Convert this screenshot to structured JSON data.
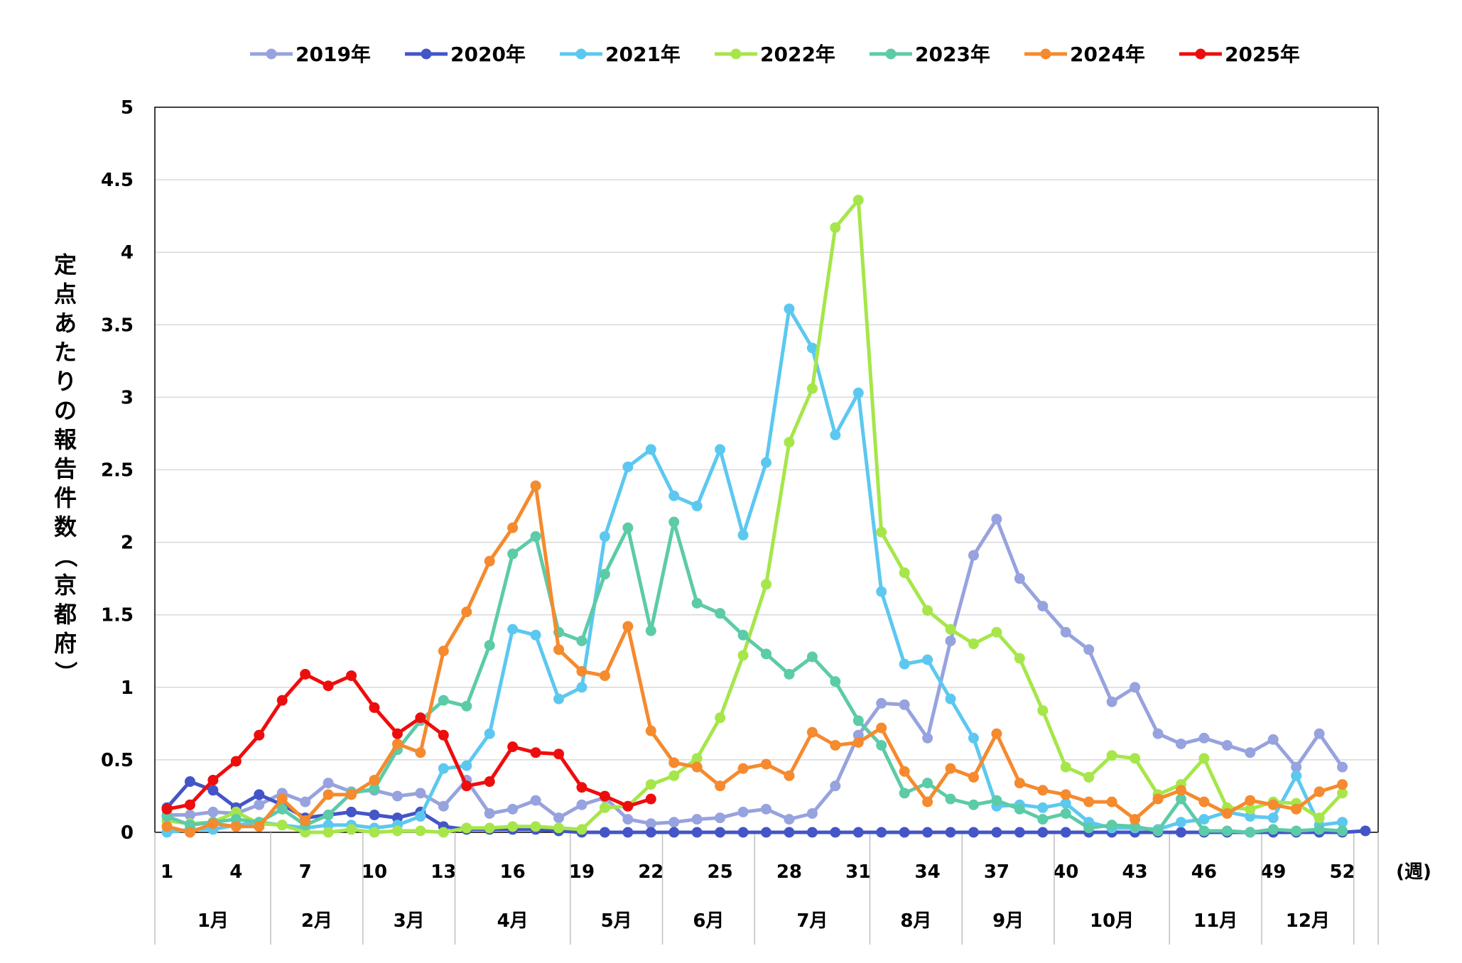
{
  "chart_data": {
    "type": "line",
    "title": "",
    "ylabel": "定点あたりの報告件数（京都府）",
    "xlabel": "(週)",
    "ylim": [
      0,
      5
    ],
    "yticks": [
      "0",
      "0.5",
      "1",
      "1.5",
      "2",
      "2.5",
      "3",
      "3.5",
      "4",
      "4.5",
      "5"
    ],
    "xlim": [
      1,
      53
    ],
    "xticks": [
      "1",
      "4",
      "7",
      "10",
      "13",
      "16",
      "19",
      "22",
      "25",
      "28",
      "31",
      "34",
      "37",
      "40",
      "43",
      "46",
      "49",
      "52"
    ],
    "months": [
      {
        "label": "1月",
        "start": 0.5,
        "end": 5.5
      },
      {
        "label": "2月",
        "start": 5.5,
        "end": 9.5
      },
      {
        "label": "3月",
        "start": 9.5,
        "end": 13.5
      },
      {
        "label": "4月",
        "start": 13.5,
        "end": 18.5
      },
      {
        "label": "5月",
        "start": 18.5,
        "end": 22.5
      },
      {
        "label": "6月",
        "start": 22.5,
        "end": 26.5
      },
      {
        "label": "7月",
        "start": 26.5,
        "end": 31.5
      },
      {
        "label": "8月",
        "start": 31.5,
        "end": 35.5
      },
      {
        "label": "9月",
        "start": 35.5,
        "end": 39.5
      },
      {
        "label": "10月",
        "start": 39.5,
        "end": 44.5
      },
      {
        "label": "11月",
        "start": 44.5,
        "end": 48.5
      },
      {
        "label": "12月",
        "start": 48.5,
        "end": 52.5
      }
    ],
    "grid": true,
    "legend_position": "top",
    "series": [
      {
        "name": "2019年",
        "color": "#97a3de",
        "start": 1,
        "values": [
          0.12,
          0.12,
          0.14,
          0.13,
          0.19,
          0.27,
          0.21,
          0.34,
          0.28,
          0.29,
          0.25,
          0.27,
          0.18,
          0.36,
          0.13,
          0.16,
          0.22,
          0.1,
          0.19,
          0.24,
          0.09,
          0.06,
          0.07,
          0.09,
          0.1,
          0.14,
          0.16,
          0.09,
          0.13,
          0.32,
          0.67,
          0.89,
          0.88,
          0.65,
          1.32,
          1.91,
          2.16,
          1.75,
          1.56,
          1.38,
          1.26,
          0.9,
          1.0,
          0.68,
          0.61,
          0.65,
          0.6,
          0.55,
          0.64,
          0.45,
          0.68,
          0.45
        ]
      },
      {
        "name": "2020年",
        "color": "#4355c7",
        "start": 1,
        "values": [
          0.17,
          0.35,
          0.29,
          0.17,
          0.26,
          0.19,
          0.1,
          0.12,
          0.14,
          0.12,
          0.1,
          0.14,
          0.04,
          0.02,
          0.02,
          0.02,
          0.02,
          0.01,
          0.0,
          0.0,
          0.0,
          0.0,
          0.0,
          0.0,
          0.0,
          0.0,
          0.0,
          0.0,
          0.0,
          0.0,
          0.0,
          0.0,
          0.0,
          0.0,
          0.0,
          0.0,
          0.0,
          0.0,
          0.0,
          0.0,
          0.0,
          0.0,
          0.0,
          0.0,
          0.0,
          0.0,
          0.0,
          0.0,
          0.0,
          0.0,
          0.0,
          0.0,
          0.01
        ]
      },
      {
        "name": "2021年",
        "color": "#5cc8f0",
        "start": 1,
        "values": [
          0.0,
          0.02,
          0.02,
          0.05,
          0.07,
          0.05,
          0.03,
          0.05,
          0.05,
          0.03,
          0.05,
          0.11,
          0.44,
          0.46,
          0.68,
          1.4,
          1.36,
          0.92,
          1.0,
          2.04,
          2.52,
          2.64,
          2.32,
          2.25,
          2.64,
          2.05,
          2.55,
          3.61,
          3.34,
          2.74,
          3.03,
          1.66,
          1.16,
          1.19,
          0.92,
          0.65,
          0.18,
          0.19,
          0.17,
          0.2,
          0.07,
          0.03,
          0.03,
          0.02,
          0.07,
          0.09,
          0.14,
          0.11,
          0.1,
          0.39,
          0.05,
          0.07
        ]
      },
      {
        "name": "2022年",
        "color": "#a6e64a",
        "start": 1,
        "values": [
          0.08,
          0.06,
          0.07,
          0.14,
          0.06,
          0.05,
          0.0,
          0.0,
          0.02,
          0.0,
          0.01,
          0.01,
          0.0,
          0.03,
          0.03,
          0.04,
          0.04,
          0.03,
          0.02,
          0.17,
          0.18,
          0.33,
          0.39,
          0.51,
          0.79,
          1.22,
          1.71,
          2.69,
          3.06,
          4.17,
          4.36,
          2.07,
          1.79,
          1.53,
          1.4,
          1.3,
          1.38,
          1.2,
          0.84,
          0.45,
          0.38,
          0.53,
          0.51,
          0.26,
          0.33,
          0.51,
          0.17,
          0.16,
          0.21,
          0.2,
          0.1,
          0.27
        ]
      },
      {
        "name": "2023年",
        "color": "#5ccba7",
        "start": 1,
        "values": [
          0.11,
          0.05,
          0.07,
          0.09,
          0.07,
          0.16,
          0.05,
          0.12,
          0.27,
          0.3,
          0.57,
          0.77,
          0.91,
          0.87,
          1.29,
          1.92,
          2.04,
          1.38,
          1.32,
          1.78,
          2.1,
          1.39,
          2.14,
          1.58,
          1.51,
          1.36,
          1.23,
          1.09,
          1.21,
          1.04,
          0.77,
          0.6,
          0.27,
          0.34,
          0.23,
          0.19,
          0.22,
          0.16,
          0.09,
          0.13,
          0.03,
          0.05,
          0.04,
          0.01,
          0.23,
          0.01,
          0.01,
          0.0,
          0.02,
          0.01,
          0.02,
          0.01
        ]
      },
      {
        "name": "2024年",
        "color": "#f58a2e",
        "start": 1,
        "values": [
          0.04,
          0.0,
          0.06,
          0.04,
          0.04,
          0.23,
          0.08,
          0.26,
          0.26,
          0.36,
          0.61,
          0.55,
          1.25,
          1.52,
          1.87,
          2.1,
          2.39,
          1.26,
          1.11,
          1.08,
          1.42,
          0.7,
          0.48,
          0.45,
          0.32,
          0.44,
          0.47,
          0.39,
          0.69,
          0.6,
          0.62,
          0.72,
          0.42,
          0.21,
          0.44,
          0.38,
          0.68,
          0.34,
          0.29,
          0.26,
          0.21,
          0.21,
          0.09,
          0.23,
          0.29,
          0.21,
          0.13,
          0.22,
          0.19,
          0.16,
          0.28,
          0.33
        ]
      },
      {
        "name": "2025年",
        "color": "#ee0d0d",
        "start": 1,
        "values": [
          0.16,
          0.19,
          0.36,
          0.49,
          0.67,
          0.91,
          1.09,
          1.01,
          1.08,
          0.86,
          0.68,
          0.79,
          0.67,
          0.32,
          0.35,
          0.59,
          0.55,
          0.54,
          0.31,
          0.25,
          0.18,
          0.23
        ]
      }
    ]
  }
}
